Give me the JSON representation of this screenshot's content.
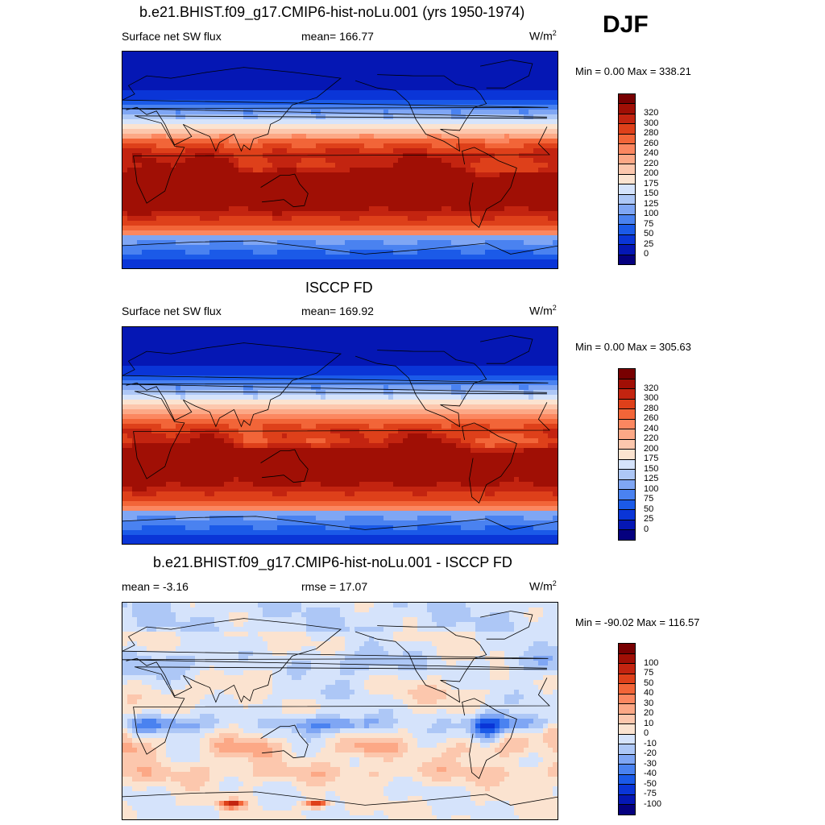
{
  "season": "DJF",
  "panels": [
    {
      "title": "b.e21.BHIST.f09_g17.CMIP6-hist-noLu.001 (yrs 1950-1974)",
      "left_label": "Surface net SW flux",
      "center_label": "mean= 166.77",
      "units_base": "W/m",
      "units_sup": "2",
      "minmax": "Min =   0.00 Max = 338.21",
      "colorbar": {
        "colors": [
          "#05007f",
          "#0517b4",
          "#0a35d7",
          "#1b5ae8",
          "#4a82f0",
          "#7fa6f4",
          "#adc7f6",
          "#d5e3fb",
          "#fbe3d0",
          "#fcc7ad",
          "#fca886",
          "#fb8760",
          "#f26538",
          "#de401a",
          "#c32410",
          "#a00f05",
          "#780001"
        ],
        "labels": [
          "0",
          "25",
          "50",
          "75",
          "100",
          "125",
          "150",
          "175",
          "200",
          "220",
          "240",
          "260",
          "280",
          "300",
          "320"
        ]
      }
    },
    {
      "title": "ISCCP FD",
      "left_label": "Surface net SW flux",
      "center_label": "mean= 169.92",
      "units_base": "W/m",
      "units_sup": "2",
      "minmax": "Min =   0.00 Max = 305.63",
      "colorbar": {
        "colors": [
          "#05007f",
          "#0517b4",
          "#0a35d7",
          "#1b5ae8",
          "#4a82f0",
          "#7fa6f4",
          "#adc7f6",
          "#d5e3fb",
          "#fbe3d0",
          "#fcc7ad",
          "#fca886",
          "#fb8760",
          "#f26538",
          "#de401a",
          "#c32410",
          "#a00f05",
          "#780001"
        ],
        "labels": [
          "0",
          "25",
          "50",
          "75",
          "100",
          "125",
          "150",
          "175",
          "200",
          "220",
          "240",
          "260",
          "280",
          "300",
          "320"
        ]
      }
    },
    {
      "title": "b.e21.BHIST.f09_g17.CMIP6-hist-noLu.001 - ISCCP FD",
      "left_label": "mean =  -3.16",
      "center_label": "rmse =  17.07",
      "units_base": "W/m",
      "units_sup": "2",
      "minmax": "Min = -90.02 Max = 116.57",
      "colorbar": {
        "colors": [
          "#05007f",
          "#0517b4",
          "#0a35d7",
          "#1b5ae8",
          "#4a82f0",
          "#7fa6f4",
          "#adc7f6",
          "#d5e3fb",
          "#fbe3d0",
          "#fcc7ad",
          "#fca886",
          "#fb8760",
          "#f26538",
          "#de401a",
          "#c32410",
          "#a00f05",
          "#780001"
        ],
        "labels": [
          "-100",
          "-75",
          "-50",
          "-40",
          "-30",
          "-20",
          "-10",
          "0",
          "10",
          "20",
          "30",
          "40",
          "50",
          "75",
          "100"
        ]
      }
    }
  ],
  "chart_data": [
    {
      "type": "heatmap",
      "title": "b.e21.BHIST.f09_g17.CMIP6-hist-noLu.001 (yrs 1950-1974)",
      "variable": "Surface net SW flux",
      "units": "W/m2",
      "season": "DJF",
      "mean": 166.77,
      "min": 0.0,
      "max": 338.21,
      "contour_levels": [
        0,
        25,
        50,
        75,
        100,
        125,
        150,
        175,
        200,
        220,
        240,
        260,
        280,
        300,
        320
      ],
      "map": "global, Pacific-centered (0 to 360 longitude)"
    },
    {
      "type": "heatmap",
      "title": "ISCCP FD",
      "variable": "Surface net SW flux",
      "units": "W/m2",
      "season": "DJF",
      "mean": 169.92,
      "min": 0.0,
      "max": 305.63,
      "contour_levels": [
        0,
        25,
        50,
        75,
        100,
        125,
        150,
        175,
        200,
        220,
        240,
        260,
        280,
        300,
        320
      ],
      "map": "global, Pacific-centered (0 to 360 longitude)"
    },
    {
      "type": "heatmap",
      "title": "b.e21.BHIST.f09_g17.CMIP6-hist-noLu.001 - ISCCP FD",
      "variable": "difference",
      "units": "W/m2",
      "season": "DJF",
      "mean": -3.16,
      "rmse": 17.07,
      "min": -90.02,
      "max": 116.57,
      "contour_levels": [
        -100,
        -75,
        -50,
        -40,
        -30,
        -20,
        -10,
        0,
        10,
        20,
        30,
        40,
        50,
        75,
        100
      ],
      "map": "global, Pacific-centered (0 to 360 longitude)"
    }
  ]
}
